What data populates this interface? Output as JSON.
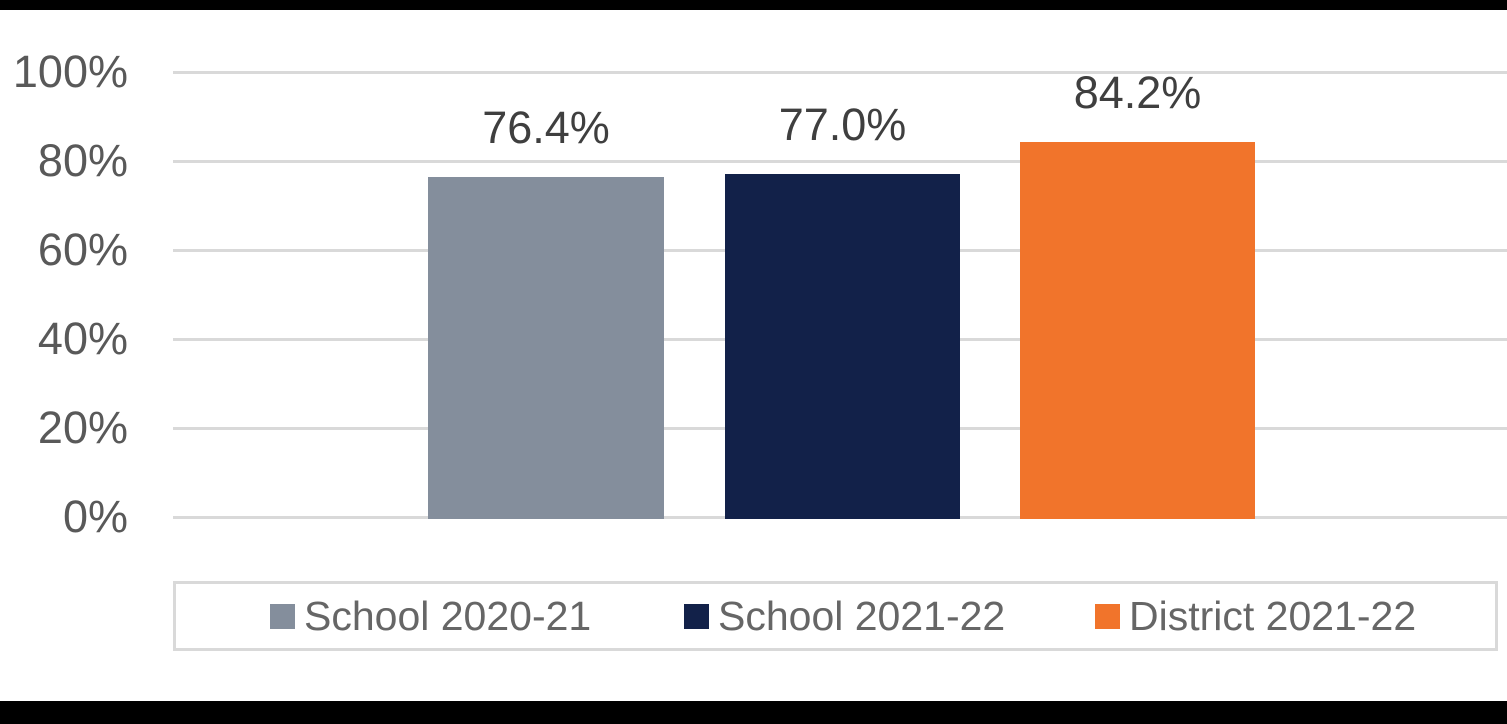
{
  "page": {
    "background_color": "#ffffff",
    "top_band_color": "#000000",
    "bottom_band_color": "#000000"
  },
  "chart_data": {
    "type": "bar",
    "title": "",
    "xlabel": "",
    "ylabel": "",
    "categories": [
      "School 2020-21",
      "School 2021-22",
      "District 2021-22"
    ],
    "series": [
      {
        "name": "School 2020-21",
        "value": 76.4,
        "label": "76.4%",
        "color": "#848E9C"
      },
      {
        "name": "School 2021-22",
        "value": 77.0,
        "label": "77.0%",
        "color": "#122149"
      },
      {
        "name": "District 2021-22",
        "value": 84.2,
        "label": "84.2%",
        "color": "#F1742B"
      }
    ],
    "y_axis": {
      "min": 0,
      "max": 100,
      "tick_values": [
        0,
        20,
        40,
        60,
        80,
        100
      ],
      "tick_labels": [
        "0%",
        "20%",
        "40%",
        "60%",
        "80%",
        "100%"
      ],
      "label_color": "#595959"
    },
    "grid": true,
    "gridline_color": "#d9d9d9",
    "data_label_color": "#3f3f3f",
    "legend": {
      "position": "bottom",
      "border_color": "#d9d9d9",
      "text_color": "#666666",
      "items": [
        "School 2020-21",
        "School 2021-22",
        "District 2021-22"
      ]
    }
  }
}
